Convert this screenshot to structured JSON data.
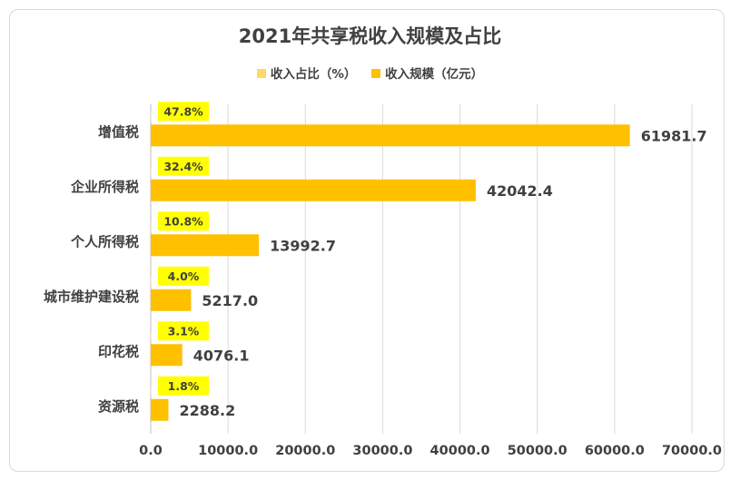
{
  "chart_data": {
    "type": "bar",
    "orientation": "horizontal",
    "title": "2021年共享税收入规模及占比",
    "categories": [
      "增值税",
      "企业所得税",
      "个人所得税",
      "城市维护建设税",
      "印花税",
      "资源税"
    ],
    "series": [
      {
        "name": "收入规模（亿元）",
        "values": [
          61981.7,
          42042.4,
          13992.7,
          5217.0,
          4076.1,
          2288.2
        ],
        "labels": [
          "61981.7",
          "42042.4",
          "13992.7",
          "5217.0",
          "4076.1",
          "2288.2"
        ],
        "color": "#ffc000"
      },
      {
        "name": "收入占比（%）",
        "values": [
          47.8,
          32.4,
          10.8,
          4.0,
          3.1,
          1.8
        ],
        "labels": [
          "47.8%",
          "32.4%",
          "10.8%",
          "4.0%",
          "3.1%",
          "1.8%"
        ],
        "color": "#ffd966",
        "label_bg": "#ffff00"
      }
    ],
    "xlim": [
      0,
      70000
    ],
    "xticks": [
      0,
      10000,
      20000,
      30000,
      40000,
      50000,
      60000,
      70000
    ],
    "xtick_labels": [
      "0.0",
      "10000.0",
      "20000.0",
      "30000.0",
      "40000.0",
      "50000.0",
      "60000.0",
      "70000.0"
    ],
    "grid": true,
    "legend_position": "top"
  },
  "legend": {
    "item1": "收入占比（%）",
    "item2": "收入规模（亿元）"
  }
}
